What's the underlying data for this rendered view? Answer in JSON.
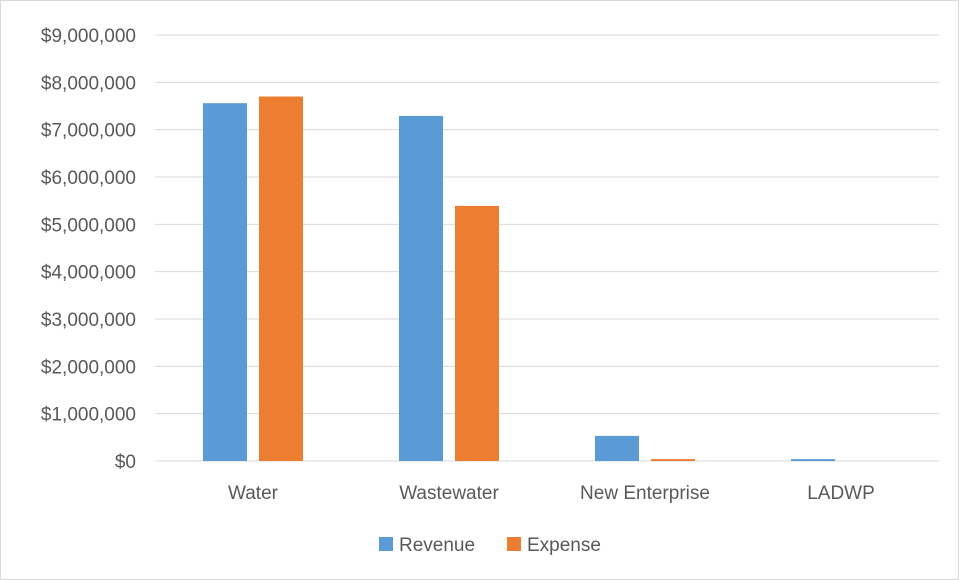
{
  "chart_data": {
    "type": "bar",
    "title": "",
    "xlabel": "",
    "ylabel": "",
    "categories": [
      "Water",
      "Wastewater",
      "New Enterprise",
      "LADWP"
    ],
    "series": [
      {
        "name": "Revenue",
        "color": "#5b9bd5",
        "values": [
          7560000,
          7290000,
          530000,
          40000
        ]
      },
      {
        "name": "Expense",
        "color": "#ed7d31",
        "values": [
          7700000,
          5390000,
          40000,
          0
        ]
      }
    ],
    "ylim": [
      0,
      9000000
    ],
    "ytick_values": [
      0,
      1000000,
      2000000,
      3000000,
      4000000,
      5000000,
      6000000,
      7000000,
      8000000,
      9000000
    ],
    "ytick_labels": [
      "$0",
      "$1,000,000",
      "$2,000,000",
      "$3,000,000",
      "$4,000,000",
      "$5,000,000",
      "$6,000,000",
      "$7,000,000",
      "$8,000,000",
      "$9,000,000"
    ],
    "grid": true,
    "legend_position": "bottom",
    "gridline_color": "#d9d9d9",
    "axis_label_color": "#595959"
  }
}
